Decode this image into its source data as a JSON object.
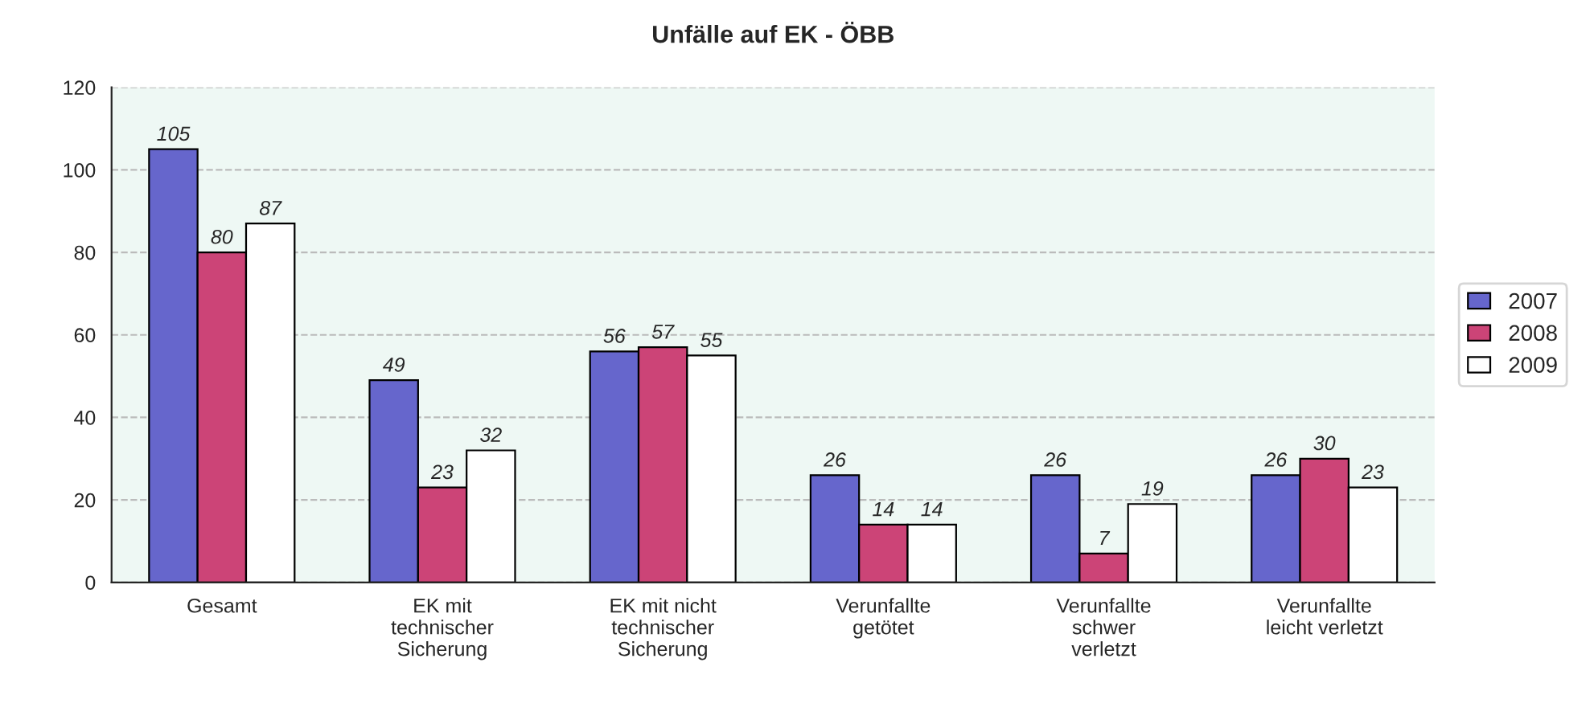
{
  "chart_data": {
    "type": "bar",
    "title": "Unfälle auf EK - ÖBB",
    "categories": [
      "Gesamt",
      "EK mit\ntechnischer\nSicherung",
      "EK mit nicht\ntechnischer\nSicherung",
      "Verunfallte\ngetötet",
      "Verunfallte\nschwer\nverletzt",
      "Verunfallte\nleicht verletzt"
    ],
    "series": [
      {
        "name": "2007",
        "color": "#6666cc",
        "values": [
          105,
          49,
          56,
          26,
          26,
          26
        ]
      },
      {
        "name": "2008",
        "color": "#cc4477",
        "values": [
          80,
          23,
          57,
          14,
          7,
          30
        ]
      },
      {
        "name": "2009",
        "color": "#ffffff",
        "values": [
          87,
          32,
          55,
          14,
          19,
          23
        ]
      }
    ],
    "ylim": [
      0,
      120
    ],
    "yticks": [
      0,
      20,
      40,
      60,
      80,
      100,
      120
    ],
    "grid": "y",
    "legend": "right",
    "data_labels": true
  }
}
